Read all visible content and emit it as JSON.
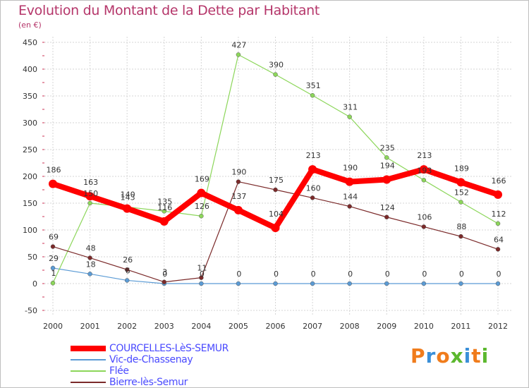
{
  "title": "Evolution du Montant de la Dette par Habitant",
  "subtitle": "(en €)",
  "logo": {
    "text": "Proxiti",
    "letter_colors": [
      "#f07c1c",
      "#3a8fd8",
      "#f07c1c",
      "#5cb82e",
      "#3a8fd8",
      "#f07c1c",
      "#5cb82e"
    ]
  },
  "chart_data": {
    "type": "line",
    "x": [
      "2000",
      "2001",
      "2002",
      "2003",
      "2004",
      "2005",
      "2006",
      "2007",
      "2008",
      "2009",
      "2010",
      "2011",
      "2012"
    ],
    "yticks": [
      "-50",
      "0",
      "50",
      "100",
      "150",
      "200",
      "250",
      "300",
      "350",
      "400",
      "450"
    ],
    "ylim": [
      -50,
      450
    ],
    "grid": true,
    "legend_position": "bottom-left",
    "series": [
      {
        "name": "COURCELLES-LèS-SEMUR",
        "color": "#ff0000",
        "width": 8,
        "values": [
          186,
          163,
          140,
          116,
          169,
          137,
          104,
          213,
          190,
          194,
          213,
          189,
          166
        ],
        "labels": [
          "186",
          "163",
          "140",
          "116",
          "169",
          "137",
          "104",
          "213",
          "190",
          "194",
          "213",
          "189",
          "166"
        ]
      },
      {
        "name": "Vic-de-Chassenay",
        "color": "#5b9bd5",
        "width": 1.2,
        "values": [
          29,
          18,
          6,
          0,
          0,
          0,
          0,
          0,
          0,
          0,
          0,
          0,
          0
        ],
        "labels": [
          "29",
          "18",
          "6",
          "0",
          "0",
          "0",
          "0",
          "0",
          "0",
          "0",
          "0",
          "0",
          "0"
        ]
      },
      {
        "name": "Flée",
        "color": "#8cd65a",
        "width": 1.2,
        "values": [
          1,
          150,
          143,
          135,
          126,
          null,
          null,
          351,
          311,
          235,
          193,
          152,
          112
        ],
        "labels": [
          "1",
          "150",
          "143",
          "135",
          "126",
          "427",
          "390",
          "351",
          "311",
          "235",
          "193",
          "152",
          "112"
        ]
      },
      {
        "name": "Bierre-lès-Semur",
        "color": "#7b2a2a",
        "width": 1.2,
        "values": [
          69,
          48,
          26,
          3,
          11,
          190,
          175,
          160,
          144,
          124,
          106,
          88,
          64
        ],
        "labels": [
          "69",
          "48",
          "26",
          "3",
          "11",
          "190",
          "175",
          "160",
          "144",
          "124",
          "106",
          "88",
          "64"
        ]
      }
    ],
    "flee_full_values": [
      1,
      150,
      143,
      135,
      126,
      427,
      390,
      351,
      311,
      235,
      193,
      152,
      112
    ]
  }
}
